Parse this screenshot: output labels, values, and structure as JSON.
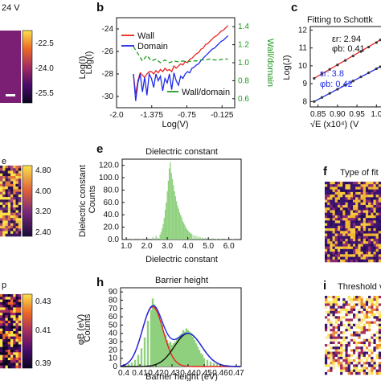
{
  "panels": {
    "b": "b",
    "c": "c",
    "e": "e",
    "f": "f",
    "h": "h",
    "i": "i"
  },
  "a_top": {
    "title_fragment": "24 V",
    "colorbar_ticks": [
      "-22.5",
      "-24.0",
      "-25.5"
    ],
    "colorbar_label": "Log(I)"
  },
  "d_mid": {
    "title_fragment": "e",
    "colorbar_ticks": [
      "4.80",
      "4.00",
      "3.20",
      "2.40"
    ],
    "colorbar_label": "Dielectric constant"
  },
  "g_bot": {
    "title_fragment": "p",
    "colorbar_ticks": [
      "0.43",
      "0.41",
      "0.39"
    ],
    "colorbar_label": "φB (eV)"
  },
  "f_panel": {
    "title": "Type of fit"
  },
  "i_panel": {
    "title": "Threshold volta"
  },
  "colors": {
    "wall": "#e8231f",
    "domain": "#1f2be8",
    "ratio": "#1f9a1f",
    "hist": "#8fd07e",
    "gauss1": "#e8231f",
    "gauss2": "#111111",
    "sum": "#1f2be8",
    "wall_fit": "#e8231f",
    "domain_fit": "#1f2be8",
    "scatter_dark": "#333333"
  },
  "chart_data": [
    {
      "id": "b",
      "type": "line",
      "xlabel": "Log(V)",
      "ylabel": "Log(I)",
      "y2label": "Wall/domain",
      "xticks": [
        "-2.0",
        "-1.375",
        "-0.75",
        "-0.125"
      ],
      "xtick_values": [
        -2.0,
        -1.375,
        -0.75,
        -0.125
      ],
      "yticks": [
        -24,
        -26,
        -28,
        -30
      ],
      "y2ticks": [
        1.4,
        1.2,
        1.0,
        0.8,
        0.6
      ],
      "xlim": [
        -2.0,
        0.1
      ],
      "ylim": [
        -31,
        -23
      ],
      "y2lim": [
        0.5,
        1.5
      ],
      "legend": [
        "Wall",
        "Domain"
      ],
      "legend2": [
        "Wall/domain"
      ],
      "series": [
        {
          "name": "Wall",
          "x": [
            -1.7,
            -1.66,
            -1.62,
            -1.58,
            -1.54,
            -1.5,
            -1.46,
            -1.42,
            -1.38,
            -1.34,
            -1.3,
            -1.26,
            -1.22,
            -1.18,
            -1.14,
            -1.1,
            -1.06,
            -1.02,
            -0.98,
            -0.94,
            -0.9,
            -0.86,
            -0.82,
            -0.78,
            -0.74,
            -0.7,
            -0.66,
            -0.62,
            -0.58,
            -0.54,
            -0.5,
            -0.46,
            -0.42,
            -0.38,
            -0.34,
            -0.3,
            -0.26,
            -0.22,
            -0.18,
            -0.14,
            -0.1,
            -0.06,
            -0.02
          ],
          "y": [
            -28.0,
            -29.8,
            -28.6,
            -27.9,
            -28.1,
            -28.3,
            -28.0,
            -27.8,
            -27.8,
            -28.0,
            -27.7,
            -27.9,
            -27.6,
            -27.8,
            -27.5,
            -27.7,
            -27.6,
            -27.8,
            -27.3,
            -27.5,
            -27.3,
            -27.1,
            -27.2,
            -26.9,
            -27.0,
            -26.7,
            -26.6,
            -26.4,
            -26.2,
            -26.1,
            -25.8,
            -25.7,
            -25.4,
            -25.3,
            -25.1,
            -24.9,
            -24.7,
            -24.6,
            -24.4,
            -24.2,
            -24.1,
            -23.9,
            -23.7
          ]
        },
        {
          "name": "Domain",
          "x": [
            -1.7,
            -1.66,
            -1.62,
            -1.58,
            -1.54,
            -1.5,
            -1.46,
            -1.42,
            -1.38,
            -1.34,
            -1.3,
            -1.26,
            -1.22,
            -1.18,
            -1.14,
            -1.1,
            -1.06,
            -1.02,
            -0.98,
            -0.94,
            -0.9,
            -0.86,
            -0.82,
            -0.78,
            -0.74,
            -0.7,
            -0.66,
            -0.62,
            -0.58,
            -0.54,
            -0.5,
            -0.46,
            -0.42,
            -0.38,
            -0.34,
            -0.3,
            -0.26,
            -0.22,
            -0.18,
            -0.14,
            -0.1,
            -0.06,
            -0.02
          ],
          "y": [
            -28.0,
            -30.4,
            -28.8,
            -28.0,
            -29.6,
            -28.3,
            -29.9,
            -28.0,
            -28.4,
            -29.2,
            -28.0,
            -28.6,
            -28.2,
            -29.5,
            -28.4,
            -28.8,
            -28.0,
            -29.4,
            -27.9,
            -28.6,
            -29.0,
            -28.2,
            -28.4,
            -28.0,
            -27.8,
            -27.9,
            -27.5,
            -27.4,
            -27.2,
            -27.1,
            -26.8,
            -26.6,
            -26.4,
            -26.2,
            -26.0,
            -25.8,
            -25.7,
            -25.5,
            -25.3,
            -25.1,
            -25.0,
            -24.8,
            -24.6
          ]
        },
        {
          "name": "Wall/domain",
          "axis": "y2",
          "x": [
            -1.7,
            -1.62,
            -1.54,
            -1.46,
            -1.38,
            -1.3,
            -1.22,
            -1.14,
            -1.06,
            -0.98,
            -0.9,
            -0.82,
            -0.74,
            -0.66,
            -0.58,
            -0.5,
            -0.42,
            -0.34,
            -0.26,
            -0.18,
            -0.1,
            -0.02
          ],
          "y": [
            1.18,
            1.1,
            1.02,
            1.08,
            1.02,
            1.04,
            1.0,
            1.03,
            1.0,
            1.02,
            1.01,
            1.02,
            1.01,
            1.02,
            1.02,
            1.03,
            1.03,
            1.04,
            1.03,
            1.03,
            1.04,
            1.04
          ]
        }
      ]
    },
    {
      "id": "c",
      "type": "scatter",
      "title": "Fitting to Schottk",
      "xlabel": "√E (x10⁴) (V",
      "ylabel": "Log(J)",
      "xticks": [
        "0.85",
        "0.90",
        "0.95",
        "1.0"
      ],
      "xtick_values": [
        0.85,
        0.9,
        0.95,
        1.0
      ],
      "yticks": [
        12,
        11,
        10,
        9,
        8
      ],
      "xlim": [
        0.83,
        1.02
      ],
      "ylim": [
        7.7,
        12.2
      ],
      "annotations": [
        {
          "text": "εr: 2.94",
          "color": "#111111"
        },
        {
          "text": "φb: 0.41",
          "color": "#111111"
        },
        {
          "text": "εr: 3.8",
          "color": "#1f2be8"
        },
        {
          "text": "φb: 0.42",
          "color": "#1f2be8"
        }
      ],
      "series": [
        {
          "name": "",
          "x": [
            0.84,
            0.86,
            0.88,
            0.9,
            0.92,
            0.94,
            0.96,
            0.98,
            1.0,
            1.01
          ],
          "y": [
            9.3,
            9.55,
            9.8,
            10.05,
            10.3,
            10.55,
            10.8,
            11.05,
            11.3,
            11.45
          ]
        },
        {
          "name": "",
          "x": [
            0.84,
            0.86,
            0.88,
            0.9,
            0.92,
            0.94,
            0.96,
            0.98,
            1.0,
            1.01
          ],
          "y": [
            8.0,
            8.23,
            8.46,
            8.69,
            8.92,
            9.15,
            9.38,
            9.61,
            9.84,
            9.95
          ]
        }
      ]
    },
    {
      "id": "e",
      "type": "bar",
      "title": "Dielectric constant",
      "xlabel": "Dielectric constant",
      "ylabel": "Counts",
      "xticks": [
        "1.0",
        "2.0",
        "3.0",
        "4.0",
        "5.0",
        "6.0"
      ],
      "xtick_values": [
        1,
        2,
        3,
        4,
        5,
        6
      ],
      "yticks": [
        0,
        20,
        40,
        60,
        80,
        100,
        120
      ],
      "xlim": [
        0.8,
        6.6
      ],
      "ylim": [
        0,
        130
      ],
      "bin_width": 0.05,
      "bins": [
        [
          2.3,
          4
        ],
        [
          2.45,
          6
        ],
        [
          2.55,
          3
        ],
        [
          2.65,
          8
        ],
        [
          2.7,
          12
        ],
        [
          2.75,
          18
        ],
        [
          2.8,
          25
        ],
        [
          2.85,
          35
        ],
        [
          2.9,
          48
        ],
        [
          2.95,
          60
        ],
        [
          3.0,
          78
        ],
        [
          3.05,
          95
        ],
        [
          3.1,
          115
        ],
        [
          3.15,
          125
        ],
        [
          3.2,
          108
        ],
        [
          3.25,
          98
        ],
        [
          3.3,
          88
        ],
        [
          3.35,
          78
        ],
        [
          3.4,
          70
        ],
        [
          3.45,
          62
        ],
        [
          3.5,
          55
        ],
        [
          3.55,
          50
        ],
        [
          3.6,
          44
        ],
        [
          3.65,
          40
        ],
        [
          3.7,
          36
        ],
        [
          3.75,
          30
        ],
        [
          3.8,
          27
        ],
        [
          3.85,
          24
        ],
        [
          3.9,
          20
        ],
        [
          3.95,
          17
        ],
        [
          4.0,
          15
        ],
        [
          4.05,
          13
        ],
        [
          4.1,
          11
        ],
        [
          4.15,
          10
        ],
        [
          4.2,
          9
        ],
        [
          4.3,
          7
        ],
        [
          4.4,
          6
        ],
        [
          4.5,
          5
        ],
        [
          4.6,
          4
        ],
        [
          4.7,
          3
        ],
        [
          4.85,
          3
        ],
        [
          5.0,
          2
        ],
        [
          5.2,
          2
        ],
        [
          5.4,
          1
        ],
        [
          5.6,
          1
        ],
        [
          5.9,
          1
        ],
        [
          6.2,
          1
        ],
        [
          1.3,
          1
        ],
        [
          1.7,
          1
        ],
        [
          2.0,
          2
        ]
      ]
    },
    {
      "id": "h",
      "type": "bar",
      "title": "Barrier height",
      "xlabel": "Barrier height (eV)",
      "ylabel": "Counts",
      "xticks": [
        "0.4",
        "0.41",
        "0.42",
        "0.43",
        "0.44",
        "0.45",
        "0.46",
        "0.47"
      ],
      "xtick_values": [
        0.4,
        0.41,
        0.42,
        0.43,
        0.44,
        0.45,
        0.46,
        0.47
      ],
      "yticks": [
        0,
        10,
        20,
        30,
        40,
        50,
        60,
        70,
        80,
        90
      ],
      "xlim": [
        0.398,
        0.473
      ],
      "ylim": [
        0,
        95
      ],
      "bin_width": 0.0012,
      "bins": [
        [
          0.401,
          2
        ],
        [
          0.403,
          3
        ],
        [
          0.405,
          5
        ],
        [
          0.407,
          8
        ],
        [
          0.409,
          14
        ],
        [
          0.411,
          22
        ],
        [
          0.413,
          35
        ],
        [
          0.415,
          55
        ],
        [
          0.417,
          68
        ],
        [
          0.418,
          82
        ],
        [
          0.419,
          75
        ],
        [
          0.42,
          72
        ],
        [
          0.421,
          65
        ],
        [
          0.422,
          62
        ],
        [
          0.423,
          55
        ],
        [
          0.424,
          50
        ],
        [
          0.425,
          40
        ],
        [
          0.426,
          38
        ],
        [
          0.427,
          32
        ],
        [
          0.428,
          28
        ],
        [
          0.429,
          30
        ],
        [
          0.43,
          26
        ],
        [
          0.431,
          28
        ],
        [
          0.432,
          30
        ],
        [
          0.433,
          34
        ],
        [
          0.434,
          36
        ],
        [
          0.435,
          38
        ],
        [
          0.436,
          40
        ],
        [
          0.437,
          44
        ],
        [
          0.438,
          42
        ],
        [
          0.439,
          46
        ],
        [
          0.44,
          44
        ],
        [
          0.441,
          42
        ],
        [
          0.442,
          40
        ],
        [
          0.443,
          36
        ],
        [
          0.444,
          32
        ],
        [
          0.445,
          28
        ],
        [
          0.446,
          24
        ],
        [
          0.447,
          20
        ],
        [
          0.448,
          16
        ],
        [
          0.449,
          14
        ],
        [
          0.45,
          10
        ],
        [
          0.452,
          8
        ],
        [
          0.454,
          6
        ],
        [
          0.456,
          4
        ],
        [
          0.458,
          3
        ],
        [
          0.461,
          2
        ],
        [
          0.464,
          2
        ],
        [
          0.468,
          1
        ]
      ],
      "fits": [
        {
          "name": "",
          "mu": 0.418,
          "sigma": 0.0065,
          "amp": 72
        },
        {
          "name": "",
          "mu": 0.44,
          "sigma": 0.0085,
          "amp": 40
        }
      ]
    }
  ]
}
